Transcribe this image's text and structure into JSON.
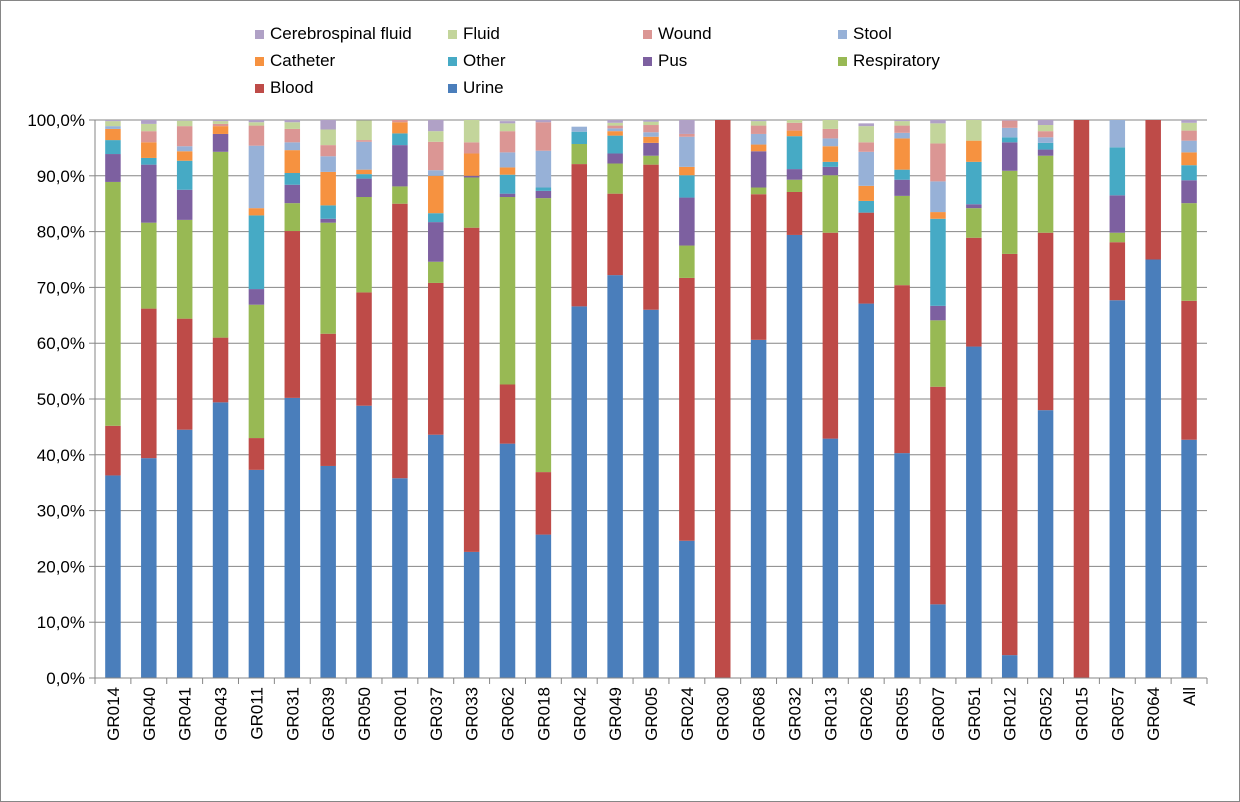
{
  "chart_data": {
    "type": "bar",
    "stacked": true,
    "title": "",
    "xlabel": "",
    "ylabel": "",
    "ylim": [
      0,
      100
    ],
    "ytick_labels": [
      "0,0%",
      "10,0%",
      "20,0%",
      "30,0%",
      "40,0%",
      "50,0%",
      "60,0%",
      "70,0%",
      "80,0%",
      "90,0%",
      "100,0%"
    ],
    "grid": true,
    "legend_position": "top",
    "categories": [
      "GR014",
      "GR040",
      "GR041",
      "GR043",
      "GR011",
      "GR031",
      "GR039",
      "GR050",
      "GR001",
      "GR037",
      "GR033",
      "GR062",
      "GR018",
      "GR042",
      "GR049",
      "GR005",
      "GR024",
      "GR030",
      "GR068",
      "GR032",
      "GR013",
      "GR026",
      "GR055",
      "GR007",
      "GR051",
      "GR012",
      "GR052",
      "GR015",
      "GR057",
      "GR064",
      "All"
    ],
    "series": [
      {
        "name": "Urine",
        "color": "#4a7ebb",
        "values": [
          36.3,
          39.4,
          44.5,
          49.4,
          37.3,
          50.2,
          38.0,
          48.8,
          35.8,
          43.6,
          22.6,
          42.0,
          25.7,
          66.6,
          72.2,
          66.0,
          24.6,
          0,
          60.6,
          79.4,
          42.9,
          67.1,
          40.3,
          13.2,
          59.4,
          4.1,
          48.0,
          0,
          67.7,
          75.0,
          42.7
        ]
      },
      {
        "name": "Blood",
        "color": "#be4b48",
        "values": [
          8.9,
          26.8,
          19.9,
          11.6,
          5.7,
          29.9,
          23.7,
          20.3,
          49.2,
          27.2,
          58.1,
          10.6,
          11.2,
          25.5,
          14.6,
          26.0,
          47.1,
          100,
          26.1,
          7.7,
          36.9,
          16.3,
          30.1,
          39.0,
          19.5,
          71.9,
          31.8,
          100,
          10.4,
          25.0,
          24.9
        ]
      },
      {
        "name": "Respiratory",
        "color": "#98b954",
        "values": [
          43.7,
          15.4,
          17.7,
          33.3,
          23.9,
          5.0,
          19.9,
          17.1,
          3.1,
          3.8,
          9.0,
          33.6,
          49.1,
          3.6,
          5.4,
          1.6,
          5.8,
          0,
          1.2,
          2.2,
          10.3,
          0,
          16.0,
          11.9,
          5.3,
          14.9,
          13.8,
          0,
          1.7,
          0,
          17.5
        ]
      },
      {
        "name": "Pus",
        "color": "#7d60a0",
        "values": [
          5.0,
          10.4,
          5.4,
          3.2,
          2.8,
          3.3,
          0.7,
          3.3,
          7.4,
          7.1,
          0.3,
          0.6,
          1.3,
          0,
          1.8,
          2.3,
          8.6,
          0,
          6.5,
          1.9,
          1.5,
          0,
          2.9,
          2.6,
          0.7,
          5.1,
          1.1,
          0,
          6.7,
          0,
          4.1
        ]
      },
      {
        "name": "Other",
        "color": "#46aac5",
        "values": [
          2.5,
          1.2,
          5.2,
          0,
          13.2,
          2.1,
          2.4,
          0.8,
          2.1,
          1.6,
          0,
          3.4,
          0.6,
          2.2,
          3.2,
          0,
          4.0,
          0,
          0,
          5.9,
          0.9,
          2.1,
          1.8,
          15.6,
          7.6,
          0.9,
          1.2,
          0,
          8.6,
          0,
          2.7
        ]
      },
      {
        "name": "Catheter",
        "color": "#f69240",
        "values": [
          2.0,
          2.8,
          1.7,
          1.4,
          1.3,
          4.1,
          6.0,
          0.8,
          2.0,
          6.7,
          4.0,
          1.3,
          0,
          0,
          0.8,
          1.1,
          1.5,
          0,
          1.2,
          1.0,
          2.8,
          2.7,
          5.6,
          1.2,
          3.8,
          0,
          0,
          0,
          0,
          0,
          2.3
        ]
      },
      {
        "name": "Stool",
        "color": "#97b1d7",
        "values": [
          0.5,
          0,
          0.9,
          0,
          11.2,
          1.4,
          2.8,
          5.0,
          0,
          1.0,
          0,
          2.7,
          6.6,
          0.9,
          0.5,
          0.8,
          5.4,
          0,
          1.9,
          0,
          1.4,
          6.1,
          1.0,
          5.5,
          0,
          1.7,
          1.0,
          0,
          4.9,
          0,
          2.1
        ]
      },
      {
        "name": "Wound",
        "color": "#db9694",
        "values": [
          0,
          2.0,
          3.6,
          0.4,
          3.6,
          2.4,
          2.0,
          0.3,
          1.1,
          5.1,
          2.0,
          3.8,
          5.1,
          0,
          0.5,
          1.3,
          0.5,
          0,
          1.5,
          1.4,
          1.7,
          1.7,
          1.3,
          6.8,
          0,
          1.3,
          1.1,
          0,
          0,
          0,
          1.8
        ]
      },
      {
        "name": "Fluid",
        "color": "#c3d59b",
        "values": [
          0.9,
          1.3,
          1.0,
          0.5,
          0.6,
          1.2,
          2.8,
          3.5,
          2.2,
          1.9,
          4.0,
          1.4,
          0,
          0,
          0.5,
          0.6,
          0,
          0,
          0.8,
          0.5,
          1.8,
          2.9,
          0.8,
          3.6,
          3.7,
          0,
          1.1,
          0,
          0,
          0,
          1.4
        ]
      },
      {
        "name": "Cerebrospinal fluid",
        "color": "#b0a1c6",
        "values": [
          0.3,
          0.7,
          0.5,
          0.2,
          0.4,
          0.4,
          1.7,
          0,
          0,
          2.0,
          0,
          0.4,
          0.4,
          0,
          0.5,
          0.3,
          2.5,
          0,
          0.2,
          0,
          0.2,
          0.5,
          0.4,
          0.6,
          0,
          0.1,
          0.9,
          0,
          0,
          0,
          0.5
        ]
      }
    ]
  }
}
